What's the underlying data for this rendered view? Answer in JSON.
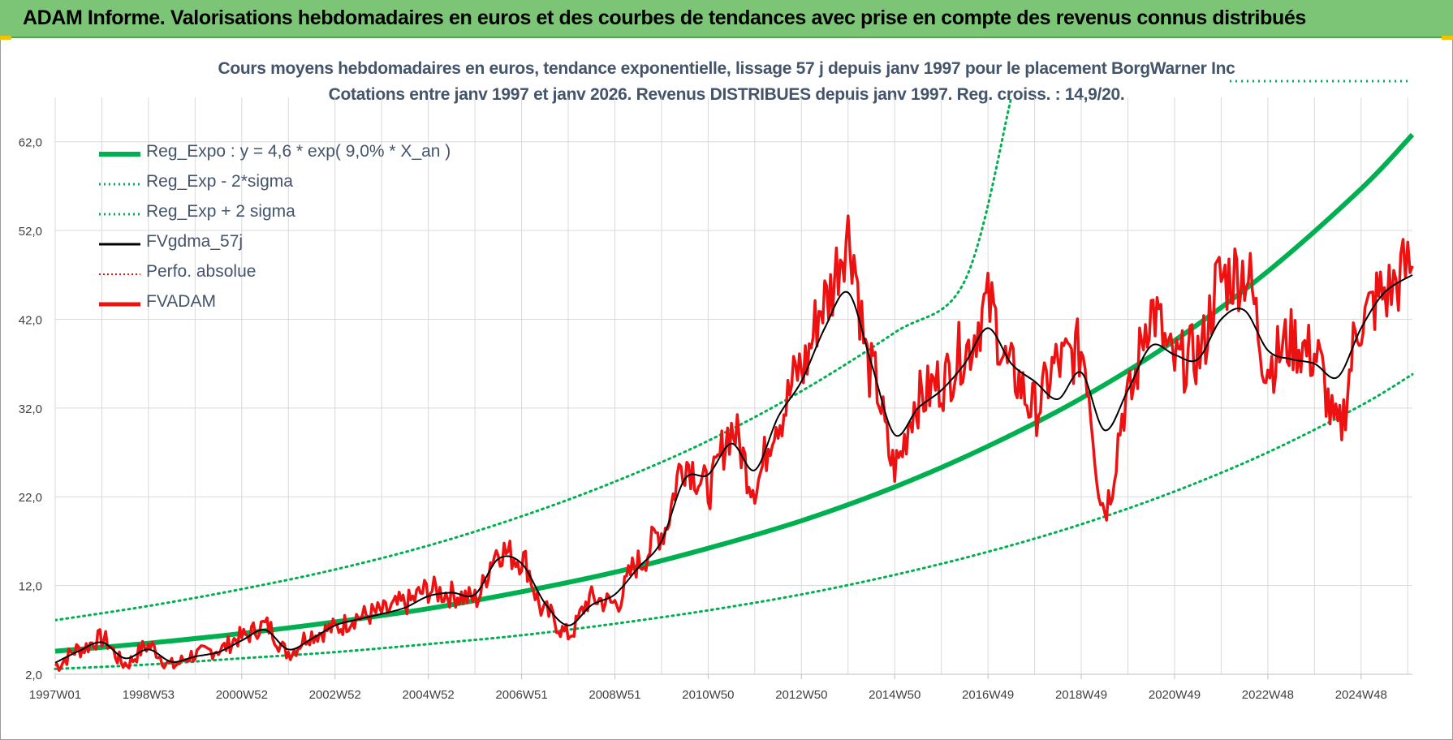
{
  "banner": {
    "title": "ADAM Informe. Valorisations hebdomadaires en euros et des courbes de tendances avec prise en compte des revenus connus distribués"
  },
  "chart": {
    "title_line1": "Cours moyens hebdomadaires en euros, tendance exponentielle, lissage 57 j depuis janv 1997  pour le placement BorgWarner Inc",
    "title_line2": "Cotations entre janv 1997 et janv 2026. Revenus DISTRIBUES depuis janv 1997. Reg. croiss. : 14,9/20."
  },
  "colors": {
    "green": "#00b050",
    "red": "#ee1111",
    "black": "#000000",
    "title": "#44546a",
    "grid": "#d9d9d9"
  },
  "chart_data": {
    "type": "line",
    "title": "Cours moyens hebdomadaires en euros, tendance exponentielle, lissage 57 j depuis janv 1997  pour le placement BorgWarner Inc",
    "xlabel": "",
    "ylabel": "",
    "xlim": [
      1997.0,
      2026.1
    ],
    "ylim": [
      2,
      67
    ],
    "yticks": [
      2,
      12,
      22,
      32,
      42,
      52,
      62
    ],
    "ytick_labels": [
      "2,0",
      "12,0",
      "22,0",
      "32,0",
      "42,0",
      "52,0",
      "62,0"
    ],
    "xtick_positions": [
      1997.0,
      1999.0,
      2001.0,
      2003.0,
      2005.0,
      2007.0,
      2009.0,
      2011.0,
      2013.0,
      2015.0,
      2017.0,
      2019.0,
      2021.0,
      2023.0,
      2025.0
    ],
    "xtick_labels": [
      "1997W01",
      "1998W53",
      "2000W52",
      "2002W52",
      "2004W52",
      "2006W51",
      "2008W51",
      "2010W50",
      "2012W50",
      "2014W50",
      "2016W49",
      "2018W49",
      "2020W49",
      "2022W48",
      "2024W48"
    ],
    "legend": [
      {
        "label": "Reg_Expo : y = 4,6 * exp( 9,0% *  X_an )",
        "color": "#00b050",
        "style": "solid-thick"
      },
      {
        "label": "Reg_Exp - 2*sigma",
        "color": "#00b050",
        "style": "dotted"
      },
      {
        "label": "Reg_Exp + 2 sigma",
        "color": "#00b050",
        "style": "dotted"
      },
      {
        "label": "FVgdma_57j",
        "color": "#000000",
        "style": "solid"
      },
      {
        "label": "Perfo. absolue",
        "color": "#ee1111",
        "style": "dotted"
      },
      {
        "label": "FVADAM",
        "color": "#ee1111",
        "style": "solid-thick"
      }
    ],
    "series": [
      {
        "name": "Reg_Expo : y = 4,6 * exp( 9,0% *  X_an )",
        "x": [
          1997.0,
          1999.0,
          2001.0,
          2003.0,
          2005.0,
          2007.0,
          2009.0,
          2011.0,
          2013.0,
          2015.0,
          2017.0,
          2019.0,
          2021.0,
          2023.0,
          2025.0,
          2026.1
        ],
        "y": [
          4.6,
          5.5,
          6.6,
          7.9,
          9.4,
          11.3,
          13.5,
          16.2,
          19.3,
          23.1,
          27.7,
          33.1,
          39.6,
          47.4,
          56.7,
          62.8
        ]
      },
      {
        "name": "Reg_Exp - 2*sigma",
        "x": [
          1997.0,
          1999.0,
          2001.0,
          2003.0,
          2005.0,
          2007.0,
          2009.0,
          2011.0,
          2013.0,
          2015.0,
          2017.0,
          2019.0,
          2021.0,
          2023.0,
          2025.0,
          2026.1
        ],
        "y": [
          2.6,
          3.1,
          3.8,
          4.5,
          5.4,
          6.4,
          7.7,
          9.2,
          11.0,
          13.2,
          15.8,
          18.9,
          22.6,
          27.0,
          32.3,
          35.8
        ]
      },
      {
        "name": "Reg_Exp + 2 sigma",
        "x": [
          1997.0,
          1999.0,
          2001.0,
          2003.0,
          2005.0,
          2007.0,
          2009.0,
          2011.0,
          2013.0,
          2015.0,
          2016.5,
          2017.5
        ],
        "y": [
          8.1,
          9.7,
          11.6,
          13.8,
          16.5,
          19.8,
          23.7,
          28.3,
          33.9,
          40.5,
          46.3,
          67.0
        ]
      },
      {
        "name": "FVgdma_57j",
        "x": [
          1997.0,
          1997.5,
          1998.0,
          1998.5,
          1999.0,
          1999.5,
          2000.0,
          2000.5,
          2001.0,
          2001.5,
          2002.0,
          2002.5,
          2003.0,
          2003.5,
          2004.0,
          2004.5,
          2005.0,
          2005.5,
          2006.0,
          2006.5,
          2007.0,
          2007.5,
          2008.0,
          2008.5,
          2009.0,
          2009.5,
          2010.0,
          2010.5,
          2011.0,
          2011.5,
          2012.0,
          2012.5,
          2013.0,
          2013.5,
          2014.0,
          2014.5,
          2015.0,
          2015.5,
          2016.0,
          2016.5,
          2017.0,
          2017.5,
          2018.0,
          2018.5,
          2019.0,
          2019.5,
          2020.0,
          2020.5,
          2021.0,
          2021.5,
          2022.0,
          2022.5,
          2023.0,
          2023.5,
          2024.0,
          2024.5,
          2025.0,
          2025.5,
          2026.1
        ],
        "y": [
          3.3,
          4.6,
          5.6,
          3.8,
          4.8,
          3.4,
          4.0,
          4.5,
          5.8,
          7.0,
          4.8,
          6.0,
          7.5,
          8.2,
          8.8,
          9.5,
          10.8,
          11.2,
          11.0,
          15.0,
          14.5,
          10.0,
          7.5,
          9.8,
          11.0,
          14.0,
          17.0,
          24.0,
          24.5,
          28.0,
          25.0,
          31.0,
          35.0,
          41.0,
          45.0,
          37.0,
          29.0,
          32.0,
          34.0,
          37.0,
          41.0,
          37.0,
          35.0,
          33.0,
          36.0,
          29.5,
          34.0,
          39.0,
          38.0,
          37.5,
          42.0,
          43.0,
          38.5,
          37.5,
          37.0,
          35.5,
          41.0,
          45.0,
          47.0
        ]
      },
      {
        "name": "FVADAM",
        "x": [
          1997.0,
          1997.5,
          1998.0,
          1998.5,
          1999.0,
          1999.5,
          2000.0,
          2000.5,
          2001.0,
          2001.5,
          2002.0,
          2002.5,
          2003.0,
          2003.5,
          2004.0,
          2004.5,
          2005.0,
          2005.5,
          2006.0,
          2006.5,
          2007.0,
          2007.5,
          2008.0,
          2008.5,
          2009.0,
          2009.5,
          2010.0,
          2010.5,
          2011.0,
          2011.5,
          2012.0,
          2012.5,
          2013.0,
          2013.5,
          2014.0,
          2014.5,
          2015.0,
          2015.5,
          2016.0,
          2016.5,
          2017.0,
          2017.5,
          2018.0,
          2018.5,
          2019.0,
          2019.5,
          2020.0,
          2020.5,
          2021.0,
          2021.5,
          2022.0,
          2022.5,
          2023.0,
          2023.5,
          2024.0,
          2024.5,
          2025.0,
          2025.5,
          2026.1
        ],
        "y": [
          3.0,
          4.8,
          6.0,
          3.2,
          5.2,
          3.0,
          4.2,
          4.8,
          6.2,
          7.5,
          4.5,
          6.5,
          7.2,
          8.5,
          9.0,
          10.0,
          11.5,
          11.0,
          10.5,
          16.0,
          15.0,
          9.0,
          6.5,
          10.5,
          10.0,
          14.5,
          18.0,
          26.0,
          23.0,
          29.5,
          23.5,
          31.0,
          36.5,
          44.0,
          51.5,
          36.0,
          25.5,
          33.0,
          35.0,
          38.5,
          43.5,
          36.0,
          32.0,
          37.0,
          38.5,
          21.0,
          33.0,
          43.0,
          37.0,
          38.0,
          46.5,
          47.5,
          37.0,
          39.5,
          38.0,
          29.5,
          42.0,
          45.0,
          48.0
        ]
      }
    ]
  }
}
